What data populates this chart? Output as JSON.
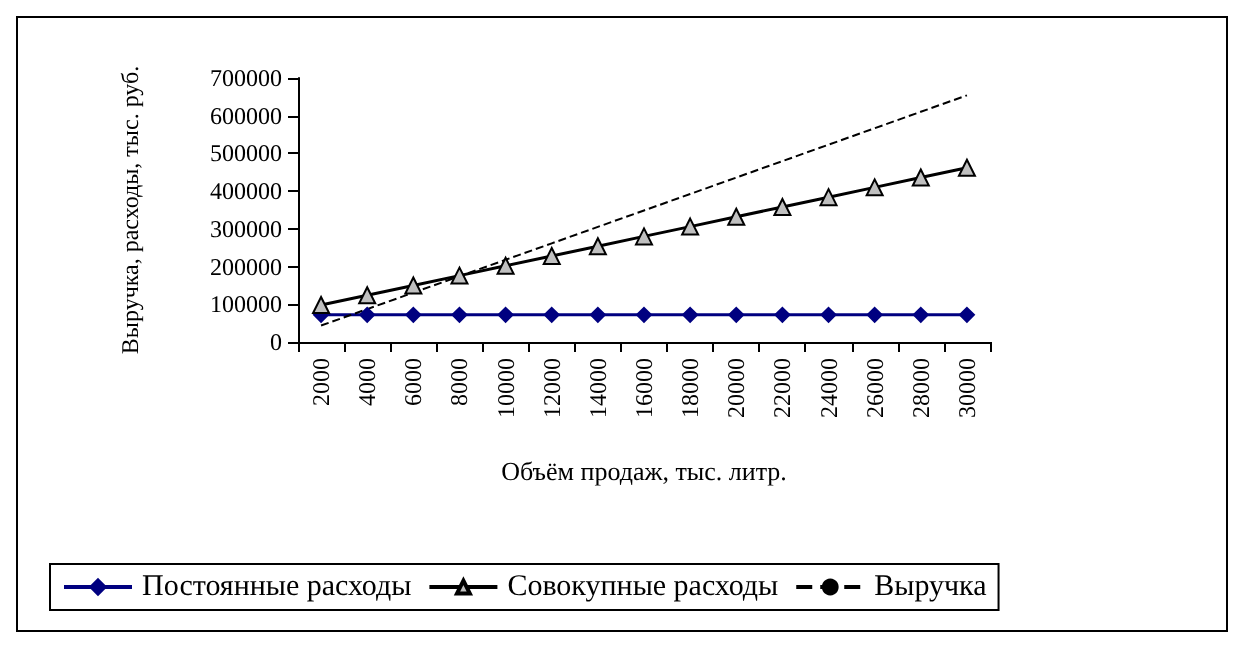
{
  "chart_data": {
    "type": "line",
    "xlabel": "Объём продаж, тыс. литр.",
    "ylabel": "Выручка, расходы, тыс. руб.",
    "categories": [
      "2000",
      "4000",
      "6000",
      "8000",
      "10000",
      "12000",
      "14000",
      "16000",
      "18000",
      "20000",
      "22000",
      "24000",
      "26000",
      "28000",
      "30000"
    ],
    "ylim": [
      0,
      700000
    ],
    "yticks": [
      0,
      100000,
      200000,
      300000,
      400000,
      500000,
      600000,
      700000
    ],
    "grid": false,
    "legend": "bottom",
    "series": [
      {
        "name": "Постоянные расходы",
        "color": "#000080",
        "marker": "diamond",
        "line_style": "solid",
        "values": [
          72000,
          72000,
          72000,
          72000,
          72000,
          72000,
          72000,
          72000,
          72000,
          72000,
          72000,
          72000,
          72000,
          72000,
          72000
        ]
      },
      {
        "name": "Совокупные расходы",
        "color": "#000000",
        "marker": "triangle",
        "line_style": "solid",
        "values": [
          98000,
          124000,
          150000,
          176000,
          202000,
          228000,
          254000,
          280000,
          306000,
          332000,
          358000,
          384000,
          410000,
          436000,
          462000
        ]
      },
      {
        "name": "Выручка",
        "color": "#000000",
        "marker": "none",
        "line_style": "dashed",
        "values": [
          43600,
          87200,
          130800,
          174400,
          218000,
          261600,
          305200,
          348800,
          392400,
          436000,
          479600,
          523200,
          566800,
          610400,
          654000
        ]
      }
    ]
  }
}
